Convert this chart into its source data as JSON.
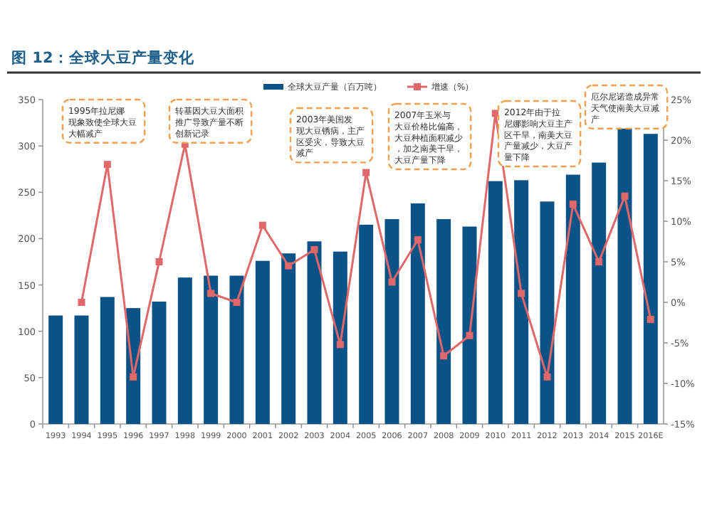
{
  "chart_data": {
    "type": "bar",
    "title": "图 12：全球大豆产量变化",
    "categories": [
      "1993",
      "1994",
      "1995",
      "1996",
      "1997",
      "1998",
      "1999",
      "2000",
      "2001",
      "2002",
      "2003",
      "2004",
      "2005",
      "2006",
      "2007",
      "2008",
      "2009",
      "2010",
      "2011",
      "2012",
      "2013",
      "2014",
      "2015",
      "2016E"
    ],
    "series": [
      {
        "name": "全球大豆产量（百万吨）",
        "color": "#0b5286",
        "values": [
          117,
          117,
          137,
          125,
          132,
          158,
          160,
          160,
          176,
          184,
          197,
          186,
          215,
          221,
          238,
          221,
          213,
          262,
          263,
          240,
          269,
          282,
          320,
          313
        ]
      },
      {
        "name": "增速（%）",
        "type": "line",
        "axis": "y2",
        "color": "#e0686a",
        "values": [
          null,
          0,
          17,
          -9.2,
          5,
          19.5,
          1.1,
          0,
          9.5,
          4.5,
          6.5,
          -5.2,
          16,
          2.5,
          7.7,
          -6.6,
          -4.1,
          23.3,
          1.1,
          -9.2,
          12.1,
          5,
          13.1,
          -2.1
        ]
      }
    ],
    "ylim": [
      0,
      350
    ],
    "yticks": [
      0,
      50,
      100,
      150,
      200,
      250,
      300,
      350
    ],
    "y2lim": [
      -15,
      25
    ],
    "y2ticks": [
      {
        "value": -15,
        "label": "-15%"
      },
      {
        "value": -10,
        "label": "-10%"
      },
      {
        "value": -5,
        "label": "-5%"
      },
      {
        "value": 0,
        "label": "0%"
      },
      {
        "value": 5,
        "label": "5%"
      },
      {
        "value": 10,
        "label": "10%"
      },
      {
        "value": 15,
        "label": "15%"
      },
      {
        "value": 20,
        "label": "20%"
      },
      {
        "value": 25,
        "label": "25%"
      }
    ],
    "legend": "top",
    "marker": "square",
    "line_style": "solid",
    "annotations": [
      "1995年拉尼娜现象致使全球大豆大幅减产",
      "转基因大豆大面积推广导致产量不断创新记录",
      "2003年美国发现大豆锈病，主产区受灾，导致大豆减产",
      "2007年玉米与大豆价格比偏高，大豆种植面积减少，加之南美干旱，大豆产量下降",
      "2012年由于拉尼娜影响大豆主产区干旱，南美大豆产量减少，大豆产量下降",
      "厄尔尼诺造成异常天气使南美大豆减产"
    ]
  }
}
